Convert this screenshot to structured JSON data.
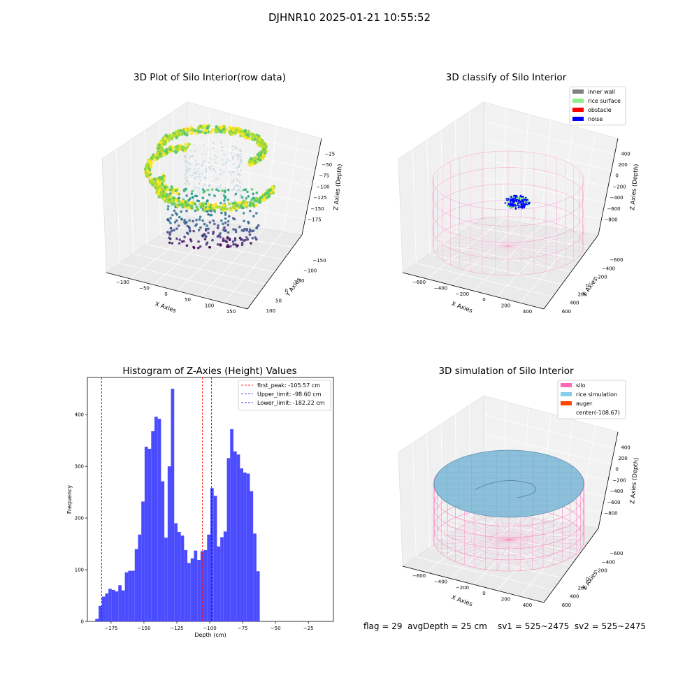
{
  "suptitle": "DJHNR10 2025-01-21 10:55:52",
  "status_line": "flag = 29  avgDepth = 25 cm    sv1 = 525~2475  sv2 = 525~2475",
  "chart_data": [
    {
      "type": "scatter",
      "subtype": "3d",
      "title": "3D Plot of Silo Interior(row data)",
      "xlabel": "X Axies",
      "ylabel": "Y Axies",
      "zlabel": "Z Axies (Depth)",
      "x_ticks": [
        "−100",
        "−50",
        "0",
        "50",
        "100",
        "150"
      ],
      "y_ticks": [
        "−150",
        "−100",
        "−50",
        "0",
        "50",
        "100"
      ],
      "z_ticks": [
        "−25",
        "−50",
        "−75",
        "−100",
        "−125",
        "−150",
        "−175"
      ],
      "colormap": "viridis",
      "zlim": [
        -190,
        -10
      ]
    },
    {
      "type": "scatter",
      "subtype": "3d",
      "title": "3D classify of Silo Interior",
      "xlabel": "X Axies",
      "ylabel": "Y Axies",
      "zlabel": "Z Axies (Depth)",
      "x_ticks": [
        "−600",
        "−400",
        "−200",
        "0",
        "200",
        "400"
      ],
      "y_ticks": [
        "−600",
        "−400",
        "−200",
        "0",
        "200",
        "400",
        "600"
      ],
      "z_ticks": [
        "400",
        "200",
        "0",
        "−200",
        "−400",
        "−600",
        "−800"
      ],
      "legend": [
        {
          "label": "inner wall",
          "color": "#808080"
        },
        {
          "label": "rice surface",
          "color": "#90ee90"
        },
        {
          "label": "obstacle",
          "color": "#ff0000"
        },
        {
          "label": "noise",
          "color": "#0000ff"
        }
      ],
      "legend_position": "top-right",
      "wall_color": "#ff69b4"
    },
    {
      "type": "bar",
      "subtype": "histogram",
      "title": "Histogram of Z-Axies (Height) Values",
      "xlabel": "Depth (cm)",
      "ylabel": "Frequency",
      "xlim": [
        -193,
        -6
      ],
      "ylim": [
        0,
        472
      ],
      "bin_start": -187,
      "bin_width": 2.5,
      "values": [
        5,
        30,
        48,
        54,
        63,
        61,
        58,
        70,
        60,
        95,
        98,
        98,
        140,
        168,
        232,
        338,
        334,
        368,
        396,
        392,
        271,
        162,
        300,
        450,
        190,
        173,
        166,
        138,
        113,
        122,
        137,
        119,
        136,
        138,
        168,
        258,
        243,
        145,
        163,
        174,
        316,
        372,
        329,
        323,
        296,
        288,
        286,
        252,
        170,
        97
      ],
      "bar_color": "#4c4cff",
      "x_ticks": [
        -175,
        -150,
        -125,
        -100,
        -75,
        -50,
        -25
      ],
      "y_ticks": [
        0,
        100,
        200,
        300,
        400
      ],
      "x_tick_labels": [
        "−175",
        "−150",
        "−125",
        "−100",
        "−75",
        "−50",
        "−25"
      ],
      "y_tick_labels": [
        "0",
        "100",
        "200",
        "300",
        "400"
      ],
      "vlines": [
        {
          "label": "first_peak: -105.57 cm",
          "x": -105.57,
          "color": "#ff0000"
        },
        {
          "label": "Upper_limit: -98.60 cm",
          "x": -98.6,
          "color": "#0000cc"
        },
        {
          "label": "Lower_limit: -182.22 cm",
          "x": -182.22,
          "color": "#0000cc"
        }
      ],
      "legend_position": "top-right"
    },
    {
      "type": "scatter",
      "subtype": "3d",
      "title": "3D simulation of Silo Interior",
      "xlabel": "X Axies",
      "ylabel": "Y Axies",
      "zlabel": "Z Axies (Depth)",
      "x_ticks": [
        "−600",
        "−400",
        "−200",
        "0",
        "200",
        "400"
      ],
      "y_ticks": [
        "−600",
        "−400",
        "−200",
        "0",
        "200",
        "400",
        "600"
      ],
      "z_ticks": [
        "400",
        "200",
        "0",
        "−200",
        "−400",
        "−600",
        "−800"
      ],
      "legend": [
        {
          "label": "silo",
          "color": "#ff69b4"
        },
        {
          "label": "rice simulation",
          "color": "#87ceeb"
        },
        {
          "label": "auger",
          "color": "#ff4500"
        },
        {
          "label": "center(-108,67)",
          "color": ""
        }
      ],
      "legend_position": "top-right",
      "surface_color": "#87bdd8"
    }
  ]
}
